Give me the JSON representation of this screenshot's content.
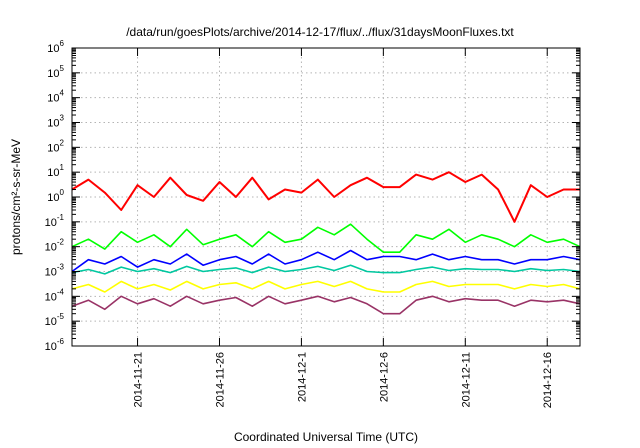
{
  "chart_data": {
    "type": "line",
    "title": "/data/run/goesPlots/archive/2014-12-17/flux/../flux/31daysMoonFluxes.txt",
    "xlabel": "Coordinated Universal Time (UTC)",
    "ylabel": "protons/cm²-s-sr-MeV",
    "y_scale": "log",
    "ylim": [
      1e-06,
      1000000.0
    ],
    "y_ticks": [
      {
        "base": "10",
        "exp": "-6",
        "value": 1e-06
      },
      {
        "base": "10",
        "exp": "-5",
        "value": 1e-05
      },
      {
        "base": "10",
        "exp": "-4",
        "value": 0.0001
      },
      {
        "base": "10",
        "exp": "-3",
        "value": 0.001
      },
      {
        "base": "10",
        "exp": "-2",
        "value": 0.01
      },
      {
        "base": "10",
        "exp": "-1",
        "value": 0.1
      },
      {
        "base": "10",
        "exp": "0",
        "value": 1
      },
      {
        "base": "10",
        "exp": "1",
        "value": 10
      },
      {
        "base": "10",
        "exp": "2",
        "value": 100
      },
      {
        "base": "10",
        "exp": "3",
        "value": 1000
      },
      {
        "base": "10",
        "exp": "4",
        "value": 10000
      },
      {
        "base": "10",
        "exp": "5",
        "value": 100000
      },
      {
        "base": "10",
        "exp": "6",
        "value": 1000000
      }
    ],
    "xlim": [
      "2014-11-17",
      "2014-12-18"
    ],
    "x_ticks": [
      "2014-11-21",
      "2014-11-26",
      "2014-12-1",
      "2014-12-6",
      "2014-12-11",
      "2014-12-16"
    ],
    "grid": true,
    "series": [
      {
        "color": "#ff0000",
        "x": [
          "2014-11-17",
          "2014-11-18",
          "2014-11-19",
          "2014-11-20",
          "2014-11-21",
          "2014-11-22",
          "2014-11-23",
          "2014-11-24",
          "2014-11-25",
          "2014-11-26",
          "2014-11-27",
          "2014-11-28",
          "2014-11-29",
          "2014-11-30",
          "2014-12-1",
          "2014-12-2",
          "2014-12-3",
          "2014-12-4",
          "2014-12-5",
          "2014-12-6",
          "2014-12-7",
          "2014-12-8",
          "2014-12-9",
          "2014-12-10",
          "2014-12-11",
          "2014-12-12",
          "2014-12-13",
          "2014-12-14",
          "2014-12-15",
          "2014-12-16",
          "2014-12-17",
          "2014-12-18"
        ],
        "values": [
          2,
          5,
          1.5,
          0.3,
          3,
          1,
          6,
          1.2,
          0.7,
          4,
          1,
          6,
          0.8,
          2,
          1.5,
          5,
          1,
          3,
          6,
          2.5,
          2.5,
          8,
          5,
          10,
          4,
          8,
          2,
          0.1,
          3,
          1,
          2,
          2
        ]
      },
      {
        "color": "#00ff00",
        "x": [
          "2014-11-17",
          "2014-11-18",
          "2014-11-19",
          "2014-11-20",
          "2014-11-21",
          "2014-11-22",
          "2014-11-23",
          "2014-11-24",
          "2014-11-25",
          "2014-11-26",
          "2014-11-27",
          "2014-11-28",
          "2014-11-29",
          "2014-11-30",
          "2014-12-1",
          "2014-12-2",
          "2014-12-3",
          "2014-12-4",
          "2014-12-5",
          "2014-12-6",
          "2014-12-7",
          "2014-12-8",
          "2014-12-9",
          "2014-12-10",
          "2014-12-11",
          "2014-12-12",
          "2014-12-13",
          "2014-12-14",
          "2014-12-15",
          "2014-12-16",
          "2014-12-17",
          "2014-12-18"
        ],
        "values": [
          0.01,
          0.02,
          0.008,
          0.04,
          0.015,
          0.03,
          0.01,
          0.05,
          0.012,
          0.02,
          0.03,
          0.01,
          0.04,
          0.015,
          0.02,
          0.06,
          0.03,
          0.08,
          0.02,
          0.006,
          0.006,
          0.03,
          0.02,
          0.05,
          0.015,
          0.03,
          0.02,
          0.01,
          0.03,
          0.015,
          0.02,
          0.01
        ]
      },
      {
        "color": "#0000ff",
        "x": [
          "2014-11-17",
          "2014-11-18",
          "2014-11-19",
          "2014-11-20",
          "2014-11-21",
          "2014-11-22",
          "2014-11-23",
          "2014-11-24",
          "2014-11-25",
          "2014-11-26",
          "2014-11-27",
          "2014-11-28",
          "2014-11-29",
          "2014-11-30",
          "2014-12-1",
          "2014-12-2",
          "2014-12-3",
          "2014-12-4",
          "2014-12-5",
          "2014-12-6",
          "2014-12-7",
          "2014-12-8",
          "2014-12-9",
          "2014-12-10",
          "2014-12-11",
          "2014-12-12",
          "2014-12-13",
          "2014-12-14",
          "2014-12-15",
          "2014-12-16",
          "2014-12-17",
          "2014-12-18"
        ],
        "values": [
          0.001,
          0.003,
          0.002,
          0.004,
          0.0015,
          0.003,
          0.002,
          0.005,
          0.0018,
          0.003,
          0.004,
          0.002,
          0.005,
          0.002,
          0.003,
          0.006,
          0.003,
          0.007,
          0.003,
          0.004,
          0.004,
          0.003,
          0.005,
          0.003,
          0.004,
          0.003,
          0.003,
          0.002,
          0.003,
          0.003,
          0.004,
          0.003
        ]
      },
      {
        "color": "#00c8a0",
        "x": [
          "2014-11-17",
          "2014-11-18",
          "2014-11-19",
          "2014-11-20",
          "2014-11-21",
          "2014-11-22",
          "2014-11-23",
          "2014-11-24",
          "2014-11-25",
          "2014-11-26",
          "2014-11-27",
          "2014-11-28",
          "2014-11-29",
          "2014-11-30",
          "2014-12-1",
          "2014-12-2",
          "2014-12-3",
          "2014-12-4",
          "2014-12-5",
          "2014-12-6",
          "2014-12-7",
          "2014-12-8",
          "2014-12-9",
          "2014-12-10",
          "2014-12-11",
          "2014-12-12",
          "2014-12-13",
          "2014-12-14",
          "2014-12-15",
          "2014-12-16",
          "2014-12-17",
          "2014-12-18"
        ],
        "values": [
          0.0009,
          0.0012,
          0.0008,
          0.0015,
          0.001,
          0.0013,
          0.0009,
          0.0016,
          0.001,
          0.0012,
          0.0014,
          0.0009,
          0.0015,
          0.001,
          0.0012,
          0.0016,
          0.0011,
          0.0018,
          0.001,
          0.0009,
          0.0009,
          0.0012,
          0.0015,
          0.0011,
          0.0013,
          0.0012,
          0.0012,
          0.001,
          0.0013,
          0.0011,
          0.0012,
          0.001
        ]
      },
      {
        "color": "#ffff00",
        "x": [
          "2014-11-17",
          "2014-11-18",
          "2014-11-19",
          "2014-11-20",
          "2014-11-21",
          "2014-11-22",
          "2014-11-23",
          "2014-11-24",
          "2014-11-25",
          "2014-11-26",
          "2014-11-27",
          "2014-11-28",
          "2014-11-29",
          "2014-11-30",
          "2014-12-1",
          "2014-12-2",
          "2014-12-3",
          "2014-12-4",
          "2014-12-5",
          "2014-12-6",
          "2014-12-7",
          "2014-12-8",
          "2014-12-9",
          "2014-12-10",
          "2014-12-11",
          "2014-12-12",
          "2014-12-13",
          "2014-12-14",
          "2014-12-15",
          "2014-12-16",
          "2014-12-17",
          "2014-12-18"
        ],
        "values": [
          0.0002,
          0.0003,
          0.00015,
          0.0004,
          0.0002,
          0.0003,
          0.00018,
          0.0004,
          0.0002,
          0.0003,
          0.00035,
          0.0002,
          0.0004,
          0.0002,
          0.0003,
          0.0004,
          0.00025,
          0.0004,
          0.0002,
          0.00015,
          0.00015,
          0.0003,
          0.0004,
          0.00025,
          0.0003,
          0.0003,
          0.0003,
          0.0002,
          0.0003,
          0.00025,
          0.0003,
          0.0002
        ]
      },
      {
        "color": "#993366",
        "x": [
          "2014-11-17",
          "2014-11-18",
          "2014-11-19",
          "2014-11-20",
          "2014-11-21",
          "2014-11-22",
          "2014-11-23",
          "2014-11-24",
          "2014-11-25",
          "2014-11-26",
          "2014-11-27",
          "2014-11-28",
          "2014-11-29",
          "2014-11-30",
          "2014-12-1",
          "2014-12-2",
          "2014-12-3",
          "2014-12-4",
          "2014-12-5",
          "2014-12-6",
          "2014-12-7",
          "2014-12-8",
          "2014-12-9",
          "2014-12-10",
          "2014-12-11",
          "2014-12-12",
          "2014-12-13",
          "2014-12-14",
          "2014-12-15",
          "2014-12-16",
          "2014-12-17",
          "2014-12-18"
        ],
        "values": [
          4e-05,
          7e-05,
          3e-05,
          0.0001,
          5e-05,
          8e-05,
          4e-05,
          0.0001,
          5e-05,
          7e-05,
          9e-05,
          4e-05,
          0.0001,
          5e-05,
          7e-05,
          0.0001,
          6e-05,
          9e-05,
          5e-05,
          2e-05,
          2e-05,
          7e-05,
          0.0001,
          6e-05,
          8e-05,
          7e-05,
          7e-05,
          4e-05,
          7e-05,
          6e-05,
          7e-05,
          5e-05
        ]
      }
    ]
  }
}
